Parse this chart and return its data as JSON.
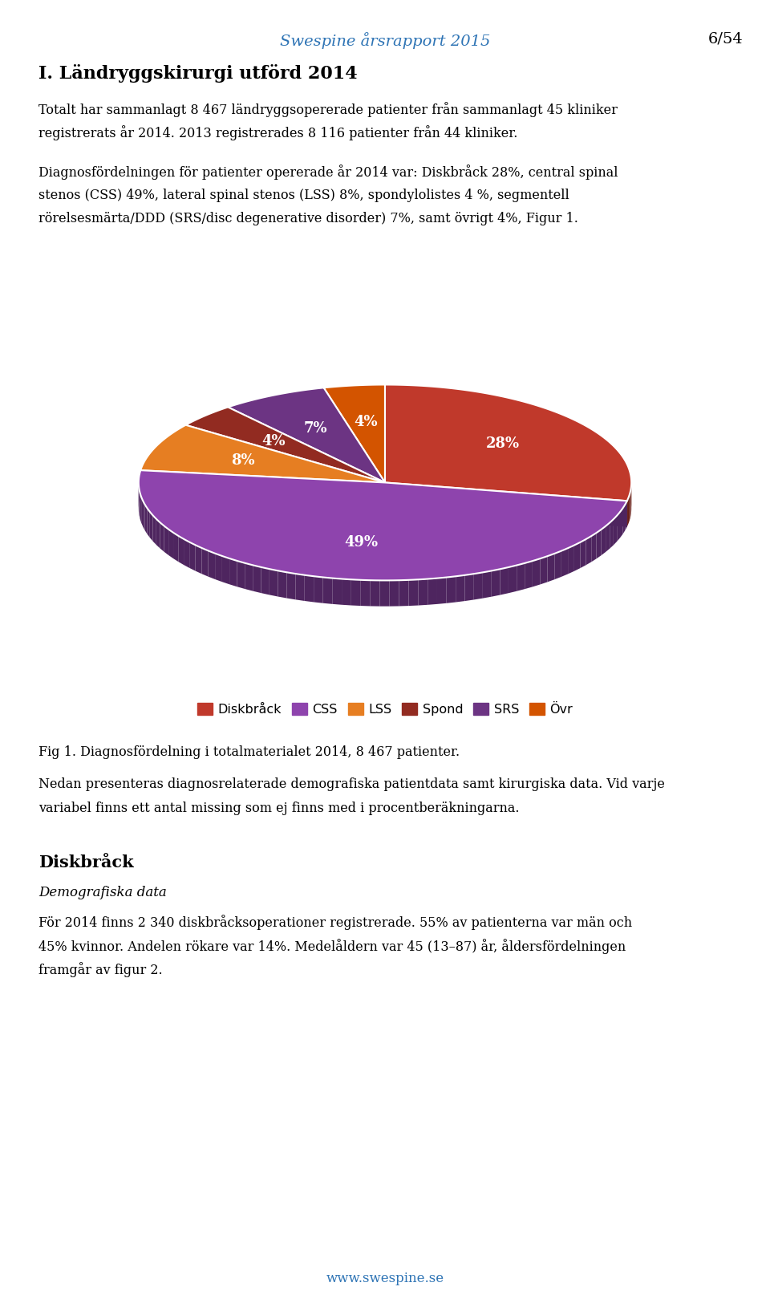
{
  "title_header": "Swespine årsrapport 2015",
  "page_num": "6/54",
  "section_title": "I. Ländryggskirurgi utförd 2014",
  "para1_line1": "Totalt har sammanlagt 8 467 ländryggsopererade patienter från sammanlagt 45 kliniker",
  "para1_line2": "registrerats år 2014. 2013 registrerades 8 116 patienter från 44 kliniker.",
  "para2_line1": "Diagnosfördelningen för patienter opererade år 2014 var: Diskbråck 28%, central spinal",
  "para2_line2": "stenos (CSS) 49%, lateral spinal stenos (LSS) 8%, spondylolistes 4 %, segmentell",
  "para2_line3": "rörelsesmärta/DDD (SRS/disc degenerative disorder) 7%, samt övrigt 4%, Figur 1.",
  "slices": [
    28,
    49,
    8,
    4,
    7,
    4
  ],
  "pct_labels": [
    "28%",
    "49%",
    "8%",
    "4%",
    "7%",
    "4%"
  ],
  "colors": [
    "#C0392B",
    "#8E44AD",
    "#E67E22",
    "#922B21",
    "#6C3483",
    "#D35400"
  ],
  "legend_labels": [
    "Diskbråck",
    "CSS",
    "LSS",
    "Spond",
    "SRS",
    "Övr"
  ],
  "fig_caption": "Fig 1. Diagnosfördelning i totalmaterialet 2014, 8 467 patienter.",
  "para3_line1": "Nedan presenteras diagnosrelaterade demografiska patientdata samt kirurgiska data. Vid varje",
  "para3_line2": "variabel finns ett antal missing som ej finns med i procentberäkningarna.",
  "section2": "Diskbråck",
  "italic_label": "Demografiska data",
  "para4_line1": "För 2014 finns 2 340 diskbråcksoperationer registrerade. 55% av patienterna var män och",
  "para4_line2": "45% kvinnor. Andelen rökare var 14%. Medelåldern var 45 (13–87) år, åldersfördelningen",
  "para4_line3": "framgår av figur 2.",
  "footer": "www.swespine.se",
  "header_color": "#2E74B5",
  "footer_color": "#2E74B5"
}
